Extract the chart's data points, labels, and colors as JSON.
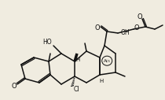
{
  "bg_color": "#f0ece0",
  "line_color": "#111111",
  "lw": 1.1,
  "figsize": [
    2.1,
    1.27
  ],
  "dpi": 100,
  "xlim": [
    0.0,
    1.0
  ],
  "ylim": [
    0.0,
    1.0
  ]
}
